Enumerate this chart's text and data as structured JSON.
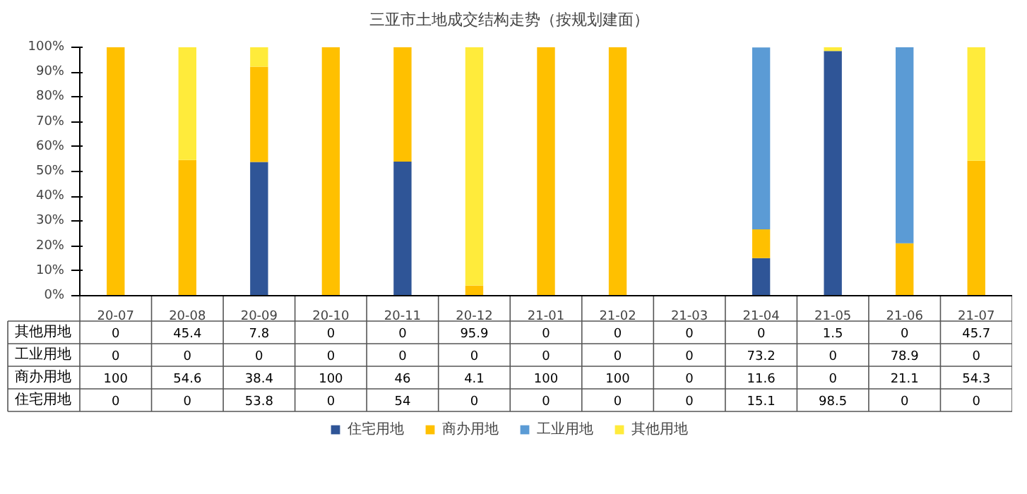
{
  "chart_data": {
    "type": "bar",
    "title": "三亚市土地成交结构走势（按规划建面）",
    "stacked": true,
    "categories": [
      "20-07",
      "20-08",
      "20-09",
      "20-10",
      "20-11",
      "20-12",
      "21-01",
      "21-02",
      "21-03",
      "21-04",
      "21-05",
      "21-06",
      "21-07"
    ],
    "series": [
      {
        "name": "住宅用地",
        "color": "#2f5597",
        "values": [
          0,
          0,
          53.8,
          0,
          54,
          0,
          0,
          0,
          0,
          15.1,
          98.5,
          0,
          0
        ]
      },
      {
        "name": "商办用地",
        "color": "#ffc000",
        "values": [
          100,
          54.6,
          38.4,
          100,
          46,
          4.1,
          100,
          100,
          0,
          11.6,
          0,
          21.1,
          54.3
        ]
      },
      {
        "name": "工业用地",
        "color": "#5b9bd5",
        "values": [
          0,
          0,
          0,
          0,
          0,
          0,
          0,
          0,
          0,
          73.2,
          0,
          78.9,
          0
        ]
      },
      {
        "name": "其他用地",
        "color": "#ffeb3b",
        "values": [
          0,
          45.4,
          7.8,
          0,
          0,
          95.9,
          0,
          0,
          0,
          0,
          1.5,
          0,
          45.7
        ]
      }
    ],
    "ylim": [
      0,
      100
    ],
    "yticks": [
      {
        "value": 0,
        "label": "0%"
      },
      {
        "value": 10,
        "label": "10%"
      },
      {
        "value": 20,
        "label": "20%"
      },
      {
        "value": 30,
        "label": "30%"
      },
      {
        "value": 40,
        "label": "40%"
      },
      {
        "value": 50,
        "label": "50%"
      },
      {
        "value": 60,
        "label": "60%"
      },
      {
        "value": 70,
        "label": "70%"
      },
      {
        "value": 80,
        "label": "80%"
      },
      {
        "value": 90,
        "label": "90%"
      },
      {
        "value": 100,
        "label": "100%"
      }
    ],
    "data_labels": true,
    "legend": "bottom",
    "grid": false
  }
}
